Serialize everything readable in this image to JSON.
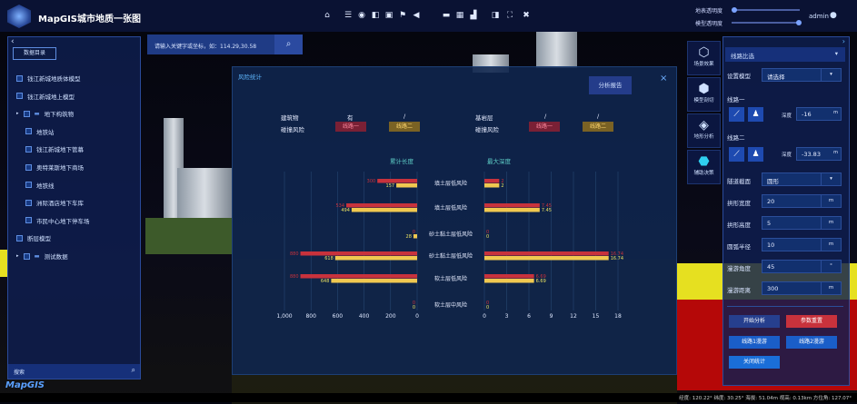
{
  "header": {
    "title": "MapGIS城市地质一张图",
    "slider1": "地表透明度",
    "slider2": "模型透明度",
    "slider1_value": 0.05,
    "slider2_value": 0.95,
    "user": "admin"
  },
  "toolbar": {
    "icons": [
      "home-icon",
      "layers-icon",
      "cube-icon",
      "box-icon",
      "tag-icon",
      "flag-icon",
      "speaker-icon",
      "map-icon",
      "table-icon",
      "chart-icon",
      "split-icon",
      "screenshot-icon",
      "fullscreen-icon"
    ]
  },
  "search": {
    "placeholder": "请输入关键字或坐标，如：114.29,30.58"
  },
  "left_panel": {
    "tab": "数据目录",
    "search_placeholder": "搜索",
    "items": [
      {
        "label": "钱江新城地质体模型",
        "level": 0
      },
      {
        "label": "钱江新城地上模型",
        "level": 0
      },
      {
        "label": "地下构筑物",
        "level": 0,
        "folder": true
      },
      {
        "label": "地铁站",
        "level": 1
      },
      {
        "label": "钱江新城地下管幕",
        "level": 1
      },
      {
        "label": "奥特莱斯地下商场",
        "level": 1
      },
      {
        "label": "地铁线",
        "level": 1
      },
      {
        "label": "洲际酒店地下车库",
        "level": 1
      },
      {
        "label": "市民中心地下停车场",
        "level": 1
      },
      {
        "label": "断层模型",
        "level": 0
      },
      {
        "label": "测试数据",
        "level": 0,
        "folder": true
      }
    ]
  },
  "logo_text": "MapGIS",
  "modal": {
    "title": "风险统计",
    "report_button": "分析报告",
    "close": "×",
    "left_row1_label": "建筑物",
    "left_row1_v1": "有",
    "left_row1_v2": "/",
    "left_row2_label": "碰撞风险",
    "right_row1_label": "基岩层",
    "right_row1_v1": "/",
    "right_row1_v2": "/",
    "right_row2_label": "碰撞风险",
    "line1": "线路一",
    "line2": "线路二"
  },
  "chart_data": [
    {
      "type": "bar",
      "title": "累计长度",
      "orientation": "horizontal",
      "reversed": true,
      "xlim": [
        0,
        1000
      ],
      "ticks": [
        "1,000",
        "800",
        "600",
        "400",
        "200",
        "0"
      ],
      "categories": [
        "填土层低风险",
        "填土层低风险",
        "砂土黏土层低风险",
        "砂土黏土层低风险",
        "软土层低风险",
        "软土层中风险"
      ],
      "series": [
        {
          "name": "线路一",
          "color": "#c8323c",
          "values": [
            300,
            534,
            0,
            880,
            880,
            0
          ]
        },
        {
          "name": "线路二",
          "color": "#f0c850",
          "values": [
            157,
            494,
            28,
            618,
            648,
            0
          ]
        }
      ]
    },
    {
      "type": "bar",
      "title": "最大深度",
      "orientation": "horizontal",
      "xlim": [
        0,
        18
      ],
      "ticks": [
        "0",
        "3",
        "6",
        "9",
        "12",
        "15",
        "18"
      ],
      "categories": [
        "填土层低风险",
        "填土层低风险",
        "砂土黏土层低风险",
        "砂土黏土层低风险",
        "软土层低风险",
        "软土层中风险"
      ],
      "series": [
        {
          "name": "线路一",
          "color": "#c8323c",
          "values": [
            2,
            7.45,
            0,
            16.74,
            6.69,
            0
          ]
        },
        {
          "name": "线路二",
          "color": "#f0c850",
          "values": [
            2,
            7.45,
            0,
            16.74,
            6.69,
            0
          ]
        }
      ]
    }
  ],
  "side_tools": [
    {
      "label": "场景效果"
    },
    {
      "label": "模型剖切"
    },
    {
      "label": "地形分析"
    },
    {
      "label": "辅助决策",
      "active": true
    }
  ],
  "right_panel": {
    "dropdown": "线路比选",
    "model_label": "设置模型",
    "model_value": "请选择",
    "line1": "线路一",
    "line2": "线路二",
    "depth_label": "深度",
    "depth1": "-16",
    "depth2": "-33.83",
    "unit_m": "m",
    "fields": [
      {
        "label": "隧道截面",
        "value": "圆形",
        "select": true
      },
      {
        "label": "拱形宽度",
        "value": "20",
        "unit": "m"
      },
      {
        "label": "拱形高度",
        "value": "5",
        "unit": "m"
      },
      {
        "label": "圆弧半径",
        "value": "10",
        "unit": "m"
      },
      {
        "label": "漫游角度",
        "value": "45",
        "unit": "°"
      },
      {
        "label": "漫游距离",
        "value": "300",
        "unit": "m"
      }
    ],
    "buttons": {
      "start": "开始分析",
      "reset": "参数重置",
      "roam1": "线路1漫游",
      "roam2": "线路2漫游",
      "stats": "关闭统计"
    }
  },
  "status": "经度: 120.22° 纬度: 30.25° 海拔: 51.04m 视高: 0.13km 方位角: 127.07°"
}
